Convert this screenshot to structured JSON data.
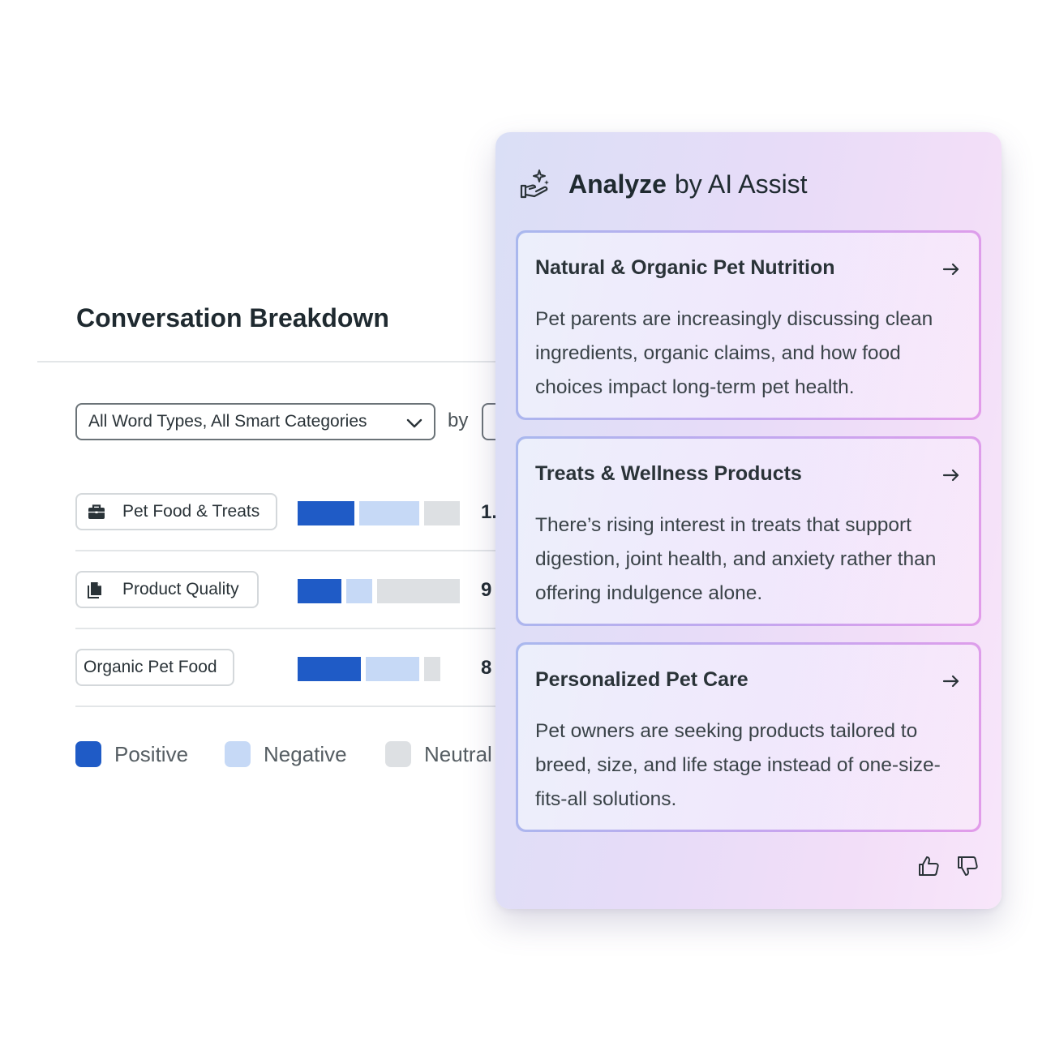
{
  "breakdown": {
    "title": "Conversation Breakdown",
    "filter": {
      "value": "All Word Types, All Smart Categories"
    },
    "by_label": "by",
    "rows": [
      {
        "label": "Pet Food & Treats",
        "icon": "briefcase-icon",
        "positive": 0.35,
        "negative": 0.37,
        "neutral": 0.22,
        "value": "1."
      },
      {
        "label": "Product Quality",
        "icon": "documents-icon",
        "positive": 0.27,
        "negative": 0.16,
        "neutral": 0.51,
        "value": "9"
      },
      {
        "label": "Organic Pet Food",
        "icon": "",
        "positive": 0.39,
        "negative": 0.33,
        "neutral": 0.1,
        "value": "8"
      }
    ],
    "legend": [
      "Positive",
      "Negative",
      "Neutral"
    ],
    "colors": {
      "positive": "#1f5bc6",
      "negative": "#c6d9f6",
      "neutral": "#dde0e3"
    }
  },
  "ai_panel": {
    "title_strong": "Analyze",
    "title_rest": "by AI Assist",
    "icon": "hand-sparkle-icon",
    "cards": [
      {
        "title": "Natural & Organic Pet Nutrition",
        "body": "Pet parents are increasingly discussing clean ingredients, organic claims, and how food choices impact long-term pet health."
      },
      {
        "title": "Treats & Wellness Products",
        "body": "There’s rising interest in treats that support digestion, joint health, and anxiety rather than offering indulgence alone."
      },
      {
        "title": "Personalized Pet Care",
        "body": "Pet owners are seeking products tailored to breed, size, and life stage instead of one-size-fits-all solutions."
      }
    ]
  }
}
